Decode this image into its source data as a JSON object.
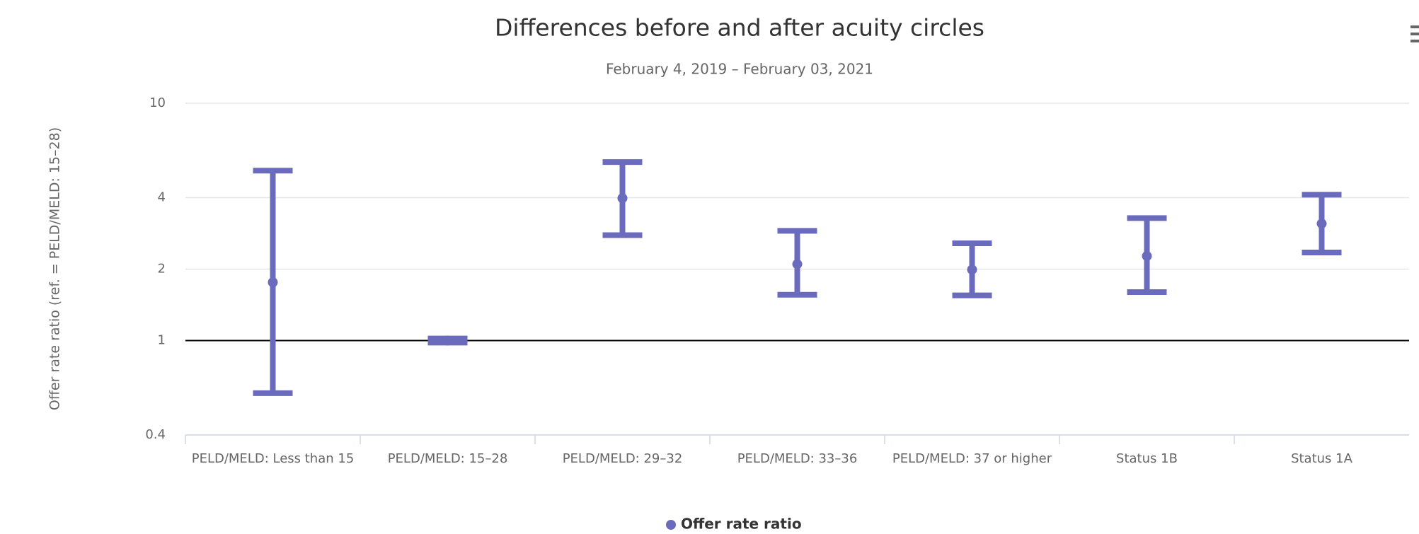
{
  "chart_data": {
    "type": "errorbar",
    "title": "Differences before and after acuity circles",
    "subtitle": "February 4, 2019 – February 03, 2021",
    "y_label": "Offer rate ratio (ref. = PELD/MELD: 15–28)",
    "categories": [
      "PELD/MELD: Less than 15",
      "PELD/MELD: 15–28",
      "PELD/MELD: 29–32",
      "PELD/MELD: 33–36",
      "PELD/MELD: 37 or higher",
      "Status 1B",
      "Status 1A"
    ],
    "series": [
      {
        "name": "Offer rate ratio",
        "color": "#6b6bbd",
        "values": [
          1.76,
          1.0,
          3.98,
          2.1,
          1.99,
          2.27,
          3.11
        ],
        "low": [
          0.6,
          0.98,
          2.78,
          1.56,
          1.55,
          1.6,
          2.35
        ],
        "high": [
          5.2,
          1.02,
          5.65,
          2.9,
          2.57,
          3.28,
          4.12
        ]
      }
    ],
    "log_y": true,
    "reference_line": 1,
    "ylim": [
      0.4,
      10
    ],
    "yticks": [
      0.4,
      1,
      2,
      4,
      10
    ],
    "grid": true
  }
}
